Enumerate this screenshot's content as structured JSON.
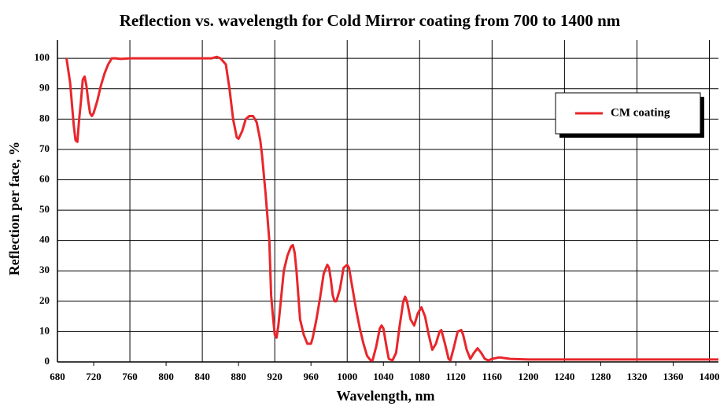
{
  "chart_data": {
    "type": "line",
    "title": "Reflection vs. wavelength for Cold Mirror coating from 700 to 1400 nm",
    "x_label": "Wavelength, nm",
    "y_label": "Reflection per face, %",
    "xlim": [
      680,
      1410
    ],
    "ylim": [
      0,
      106
    ],
    "xticks": [
      680,
      720,
      760,
      800,
      840,
      880,
      920,
      960,
      1000,
      1040,
      1080,
      1120,
      1160,
      1200,
      1240,
      1280,
      1320,
      1360,
      1400
    ],
    "yticks": [
      0,
      10,
      20,
      30,
      40,
      50,
      60,
      70,
      80,
      90,
      100
    ],
    "grid": true,
    "legend": "upper right",
    "x": [
      690,
      694,
      698,
      700,
      702,
      704,
      706,
      708,
      710,
      712,
      714,
      716,
      718,
      720,
      724,
      728,
      732,
      736,
      740,
      744,
      750,
      760,
      800,
      840,
      850,
      856,
      860,
      866,
      870,
      874,
      878,
      880,
      884,
      888,
      892,
      896,
      900,
      904,
      906,
      910,
      914,
      916,
      918,
      920,
      922,
      924,
      926,
      928,
      930,
      934,
      938,
      940,
      942,
      944,
      946,
      948,
      952,
      956,
      960,
      962,
      966,
      970,
      974,
      978,
      980,
      982,
      984,
      986,
      988,
      992,
      996,
      1000,
      1002,
      1006,
      1010,
      1014,
      1018,
      1022,
      1026,
      1028,
      1032,
      1036,
      1038,
      1040,
      1044,
      1046,
      1050,
      1054,
      1058,
      1062,
      1064,
      1066,
      1070,
      1074,
      1078,
      1082,
      1086,
      1090,
      1094,
      1098,
      1102,
      1104,
      1108,
      1112,
      1114,
      1118,
      1122,
      1126,
      1128,
      1132,
      1136,
      1140,
      1144,
      1148,
      1152,
      1156,
      1160,
      1168,
      1180,
      1200,
      1250,
      1300,
      1350,
      1410
    ],
    "series": [
      {
        "name": "CM coating",
        "color": "#e8262b",
        "values": [
          100,
          92,
          78,
          73,
          72.5,
          80,
          86,
          93,
          94,
          91,
          86,
          82,
          81,
          82,
          86,
          91,
          95,
          98,
          100,
          100,
          99.8,
          100,
          100,
          100,
          100,
          100.5,
          100,
          98,
          90,
          80,
          74,
          73.5,
          76,
          80,
          81,
          81,
          79,
          73,
          68,
          55,
          40,
          22,
          15,
          9,
          8,
          12,
          18,
          24,
          30,
          35,
          38,
          38.5,
          36,
          30,
          22,
          14,
          9,
          6,
          6,
          8,
          14,
          21,
          29,
          32,
          31,
          27,
          22,
          20,
          20,
          24,
          31,
          32,
          31,
          24,
          17,
          11,
          6,
          2,
          0.5,
          0.5,
          5,
          11,
          12,
          11,
          4,
          1,
          0.5,
          3,
          12,
          20,
          21.5,
          20,
          14,
          12,
          16,
          18,
          15,
          9,
          4,
          6,
          10,
          10.5,
          6,
          1,
          0.5,
          5,
          10,
          10.5,
          9,
          4,
          1,
          3,
          4.5,
          3,
          1,
          0.5,
          1,
          1.5,
          1,
          0.8,
          0.8,
          0.8,
          0.8,
          0.8
        ]
      }
    ]
  }
}
